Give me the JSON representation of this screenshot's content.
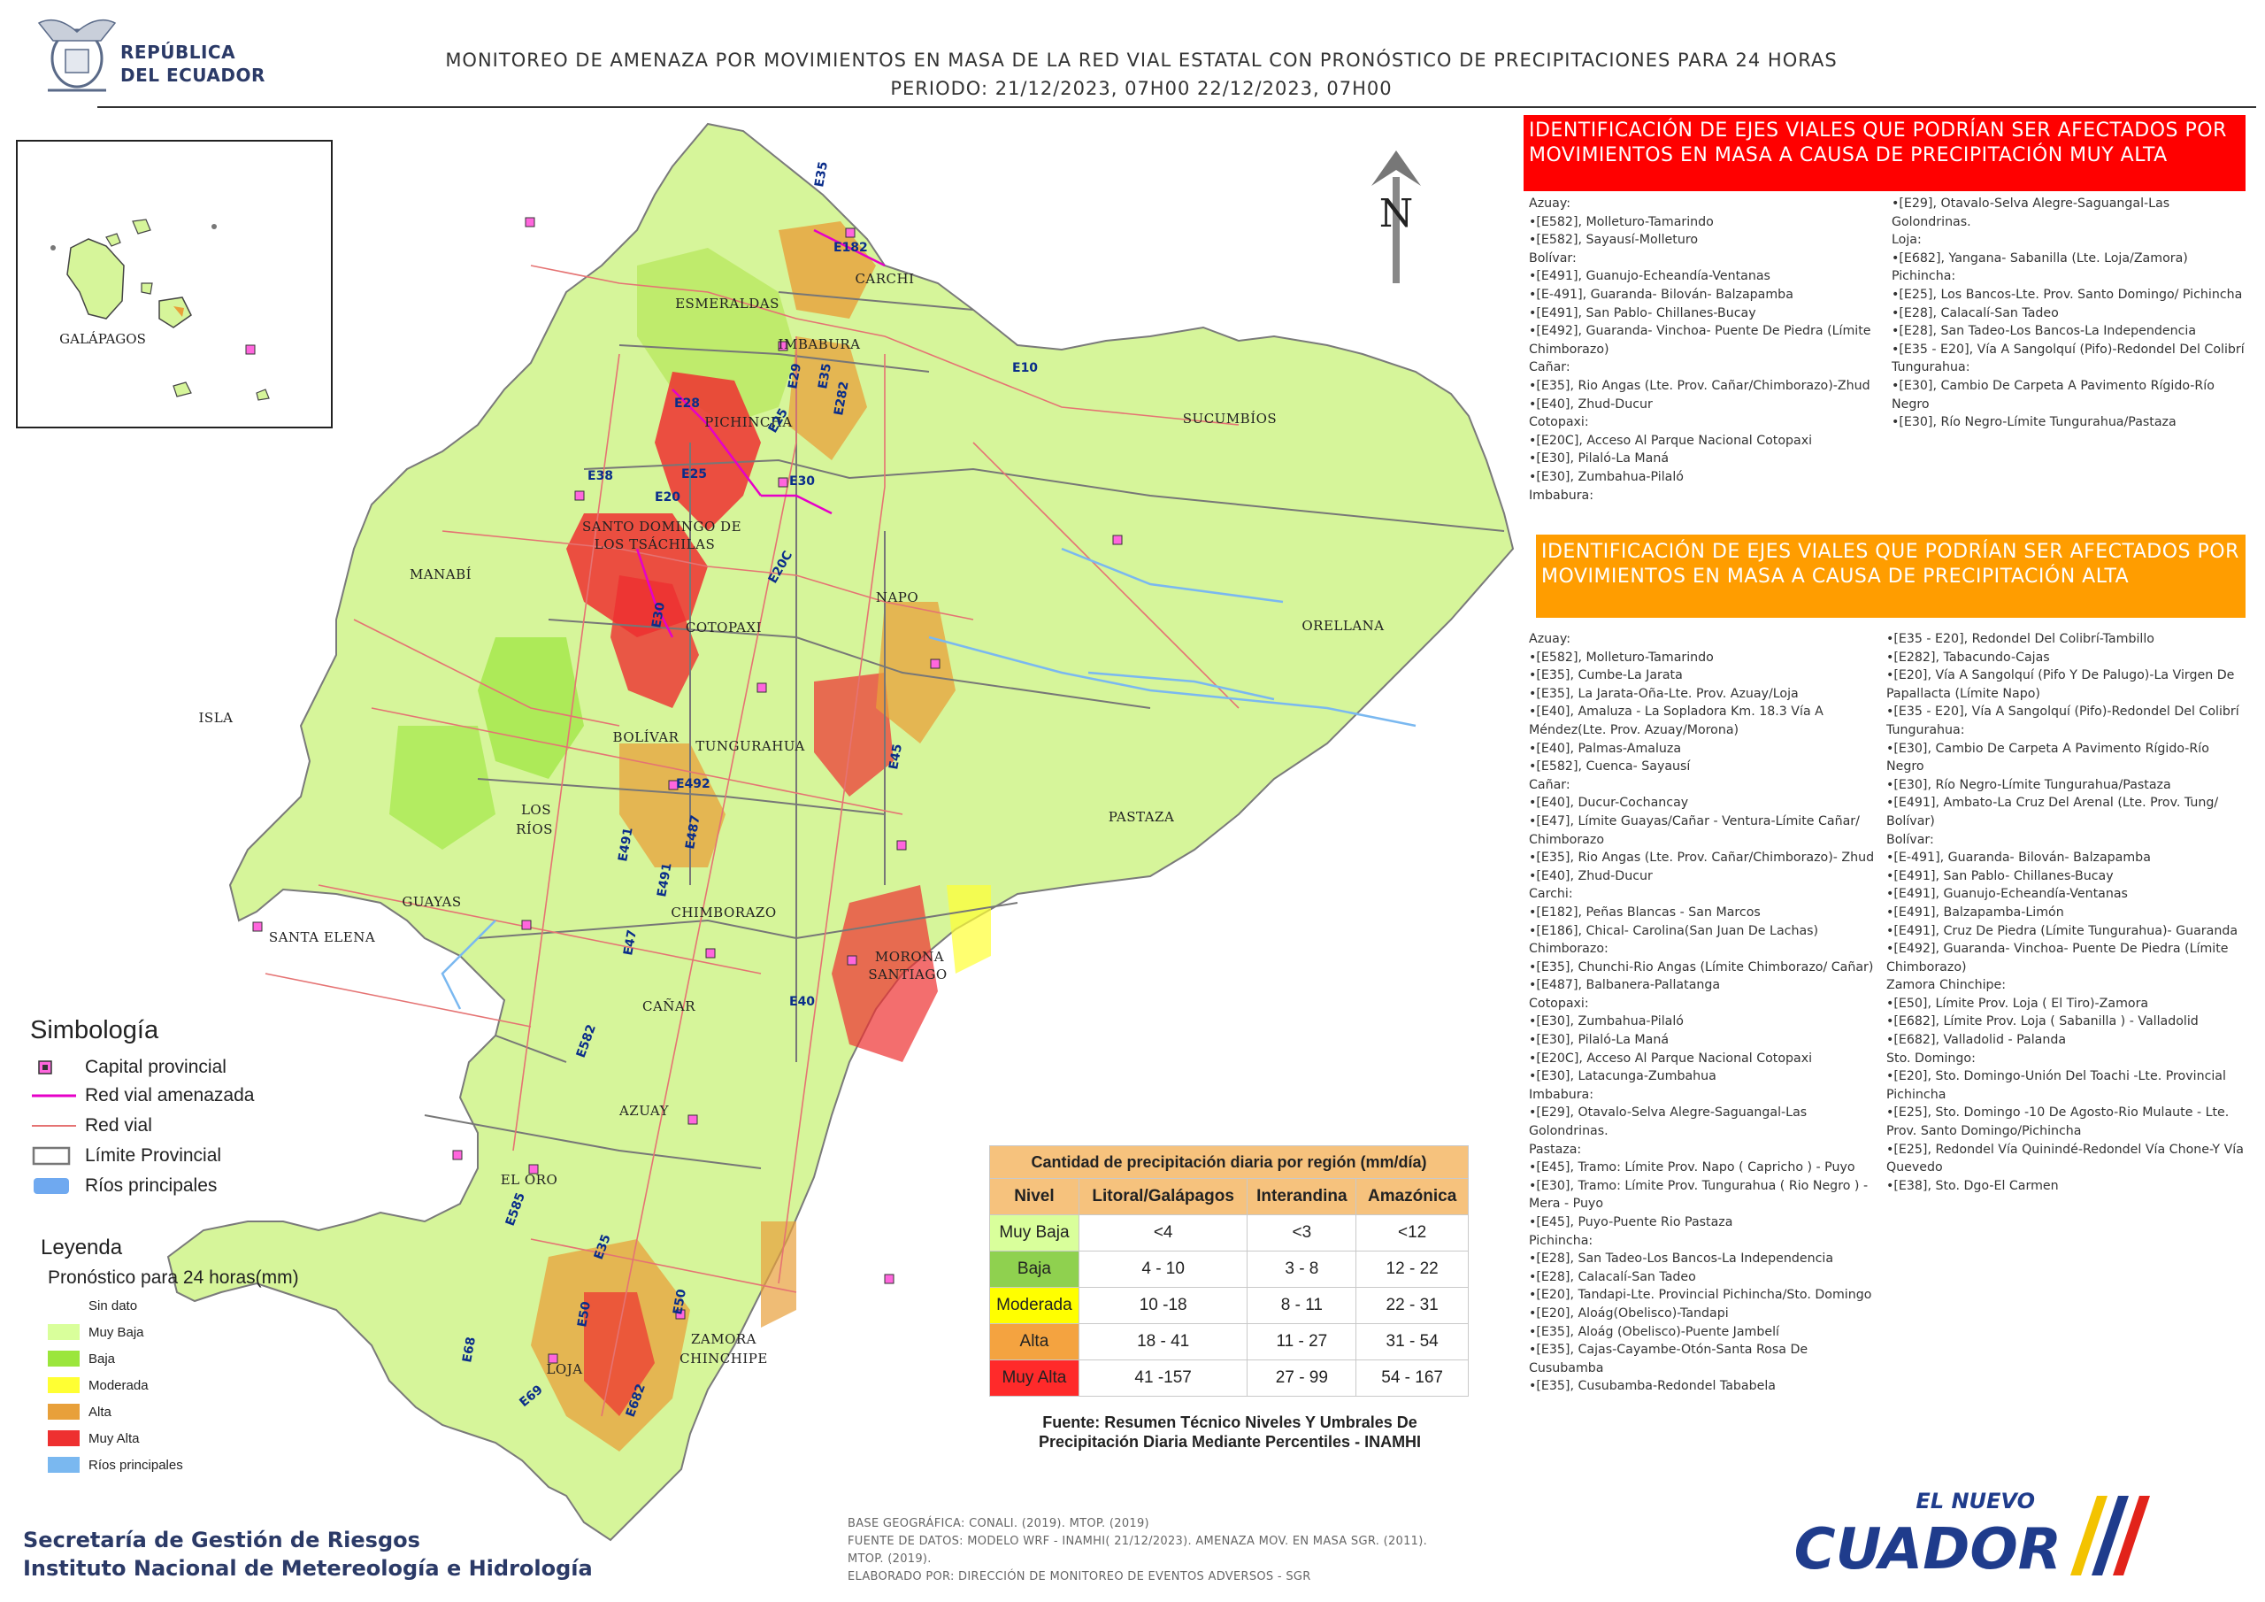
{
  "header": {
    "republic_line1": "REPÚBLICA",
    "republic_line2": "DEL ECUADOR",
    "title_line1": "MONITOREO DE AMENAZA POR MOVIMIENTOS EN MASA DE LA RED VIAL  ESTATAL  CON PRONÓSTICO  DE  PRECIPITACIONES PARA 24 HORAS",
    "title_line2": "PERIODO: 21/12/2023, 07H00 22/12/2023, 07H00"
  },
  "map": {
    "north_label": "N",
    "provinces": [
      "CARCHI",
      "ESMERALDAS",
      "IMBABURA",
      "PICHINCHA",
      "SUCUMBÍOS",
      "SANTO DOMINGO DE",
      "LOS TSÁCHILAS",
      "MANABÍ",
      "NAPO",
      "ORELLANA",
      "COTOPAXI",
      "BOLÍVAR",
      "TUNGURAHUA",
      "LOS",
      "RÍOS",
      "PASTAZA",
      "GUAYAS",
      "SANTA ELENA",
      "CHIMBORAZO",
      "MORONA",
      "SANTIAGO",
      "CAÑAR",
      "AZUAY",
      "EL ORO",
      "LOJA",
      "ZAMORA",
      "CHINCHIPE",
      "ISLA"
    ],
    "inset_label": "GALÁPAGOS",
    "road_codes": [
      "E35",
      "E182",
      "E10",
      "E28",
      "E29",
      "E35",
      "E282",
      "E38",
      "E20",
      "E25",
      "E20C",
      "E30",
      "E30",
      "E45",
      "E492",
      "E491",
      "E491",
      "E487",
      "E47",
      "E40",
      "E582",
      "E585",
      "E35",
      "E50",
      "E50",
      "E68",
      "E69",
      "E682",
      "E25"
    ]
  },
  "panel_red": {
    "title": "IDENTIFICACIÓN DE EJES VIALES QUE PODRÍAN SER AFECTADOS POR MOVIMIENTOS EN MASA A CAUSA DE PRECIPITACIÓN MUY ALTA",
    "col1": [
      "Azuay:",
      "•[E582], Molleturo-Tamarindo",
      "•[E582], Sayausí-Molleturo",
      "Bolívar:",
      "•[E491], Guanujo-Echeandía-Ventanas",
      "•[E-491], Guaranda- Bilován- Balzapamba",
      "•[E491], San Pablo- Chillanes-Bucay",
      "•[E492], Guaranda- Vinchoa- Puente De Piedra (Límite Chimborazo)",
      "Cañar:",
      "•[E35], Rio Angas (Lte. Prov. Cañar/Chimborazo)-Zhud",
      "•[E40], Zhud-Ducur",
      "Cotopaxi:",
      "•[E20C], Acceso Al Parque Nacional Cotopaxi",
      "•[E30], Pilaló-La Maná",
      "•[E30], Zumbahua-Pilaló",
      "Imbabura:"
    ],
    "col2": [
      "•[E29], Otavalo-Selva Alegre-Saguangal-Las Golondrinas.",
      "Loja:",
      "•[E682], Yangana- Sabanilla (Lte. Loja/Zamora)",
      "Pichincha:",
      "•[E25], Los Bancos-Lte. Prov. Santo Domingo/ Pichincha",
      "•[E28], Calacalí-San Tadeo",
      "•[E28], San Tadeo-Los Bancos-La Independencia",
      "•[E35 - E20], Vía A Sangolquí (Pifo)-Redondel Del Colibrí",
      "Tungurahua:",
      "•[E30], Cambio De Carpeta A Pavimento Rígido-Río Negro",
      "•[E30], Río Negro-Límite Tungurahua/Pastaza"
    ]
  },
  "panel_orange": {
    "title": "IDENTIFICACIÓN DE EJES VIALES QUE PODRÍAN SER AFECTADOS POR MOVIMIENTOS EN MASA A CAUSA DE PRECIPITACIÓN  ALTA",
    "col1": [
      "Azuay:",
      "•[E582], Molleturo-Tamarindo",
      "•[E35], Cumbe-La Jarata",
      "•[E35], La Jarata-Oña-Lte. Prov. Azuay/Loja",
      "•[E40], Amaluza - La Sopladora Km. 18.3 Vía A Méndez(Lte. Prov. Azuay/Morona)",
      "•[E40], Palmas-Amaluza",
      "•[E582], Cuenca- Sayausí",
      "Cañar:",
      "•[E40], Ducur-Cochancay",
      "•[E47], Límite Guayas/Cañar - Ventura-Límite Cañar/ Chimborazo",
      "•[E35], Rio Angas (Lte. Prov. Cañar/Chimborazo)- Zhud",
      "•[E40], Zhud-Ducur",
      "Carchi:",
      "•[E182], Peñas Blancas - San Marcos",
      "•[E186], Chical- Carolina(San Juan De Lachas)",
      "Chimborazo:",
      "•[E35], Chunchi-Rio Angas (Límite Chimborazo/ Cañar)",
      "•[E487], Balbanera-Pallatanga",
      "Cotopaxi:",
      "•[E30], Zumbahua-Pilaló",
      "•[E30], Pilaló-La Maná",
      "•[E20C], Acceso Al Parque Nacional Cotopaxi",
      "•[E30], Latacunga-Zumbahua",
      "Imbabura:",
      "•[E29], Otavalo-Selva Alegre-Saguangal-Las Golondrinas.",
      "Pastaza:",
      "•[E45], Tramo: Límite Prov. Napo ( Capricho ) - Puyo",
      "•[E30], Tramo: Límite Prov. Tungurahua ( Rio Negro ) - Mera - Puyo",
      "•[E45], Puyo-Puente Rio Pastaza",
      "Pichincha:",
      "•[E28], San Tadeo-Los Bancos-La Independencia",
      "•[E28], Calacalí-San Tadeo",
      "•[E20], Tandapi-Lte. Provincial Pichincha/Sto. Domingo",
      "•[E20], Aloág(Obelisco)-Tandapi",
      "•[E35], Aloág (Obelisco)-Puente Jambelí",
      "•[E35], Cajas-Cayambe-Otón-Santa Rosa De Cusubamba",
      "•[E35], Cusubamba-Redondel Tababela"
    ],
    "col2": [
      "•[E35 - E20], Redondel Del Colibrí-Tambillo",
      "•[E282], Tabacundo-Cajas",
      "•[E20], Vía A Sangolquí (Pifo Y De Palugo)-La Virgen De Papallacta (Límite Napo)",
      "•[E35 - E20], Vía A Sangolquí (Pifo)-Redondel Del Colibrí",
      "Tungurahua:",
      "•[E30], Cambio De Carpeta A Pavimento Rígido-Río Negro",
      "•[E30], Río Negro-Límite Tungurahua/Pastaza",
      "•[E491], Ambato-La Cruz Del Arenal (Lte. Prov. Tung/ Bolívar)",
      "Bolívar:",
      "•[E-491], Guaranda- Bilován- Balzapamba",
      "•[E491], San Pablo- Chillanes-Bucay",
      "•[E491], Guanujo-Echeandía-Ventanas",
      "•[E491], Balzapamba-Limón",
      "•[E491], Cruz De Piedra (Límite Tungurahua)- Guaranda",
      "•[E492], Guaranda- Vinchoa- Puente De Piedra (Límite Chimborazo)",
      "Zamora Chinchipe:",
      "•[E50], Límite Prov. Loja ( El Tiro)-Zamora",
      "•[E682], Límite Prov. Loja ( Sabanilla ) - Valladolid",
      "•[E682], Valladolid - Palanda",
      "Sto. Domingo:",
      "•[E20], Sto. Domingo-Unión Del Toachi -Lte. Provincial Pichincha",
      "•[E25], Sto. Domingo -10 De Agosto-Rio Mulaute - Lte. Prov. Santo Domingo/Pichincha",
      "•[E25], Redondel Vía Quinindé-Redondel Vía Chone-Y Vía Quevedo",
      "•[E38], Sto. Dgo-El Carmen"
    ]
  },
  "simbologia": {
    "title": "Simbología",
    "items": [
      "Capital provincial",
      "Red vial amenazada",
      "Red vial",
      "Límite Provincial",
      "Ríos principales"
    ]
  },
  "leyenda": {
    "title": "Leyenda",
    "subtitle": "Pronóstico para 24 horas(mm)",
    "items": [
      "Sin dato",
      "Muy Baja",
      "Baja",
      "Moderada",
      "Alta",
      "Muy Alta",
      "Ríos principales"
    ],
    "colors": [
      "#ffffff",
      "#d9ff9b",
      "#9be63c",
      "#ffff33",
      "#e8a03a",
      "#ee3030",
      "#7ab8f0"
    ]
  },
  "table": {
    "title": "Cantidad de precipitación diaria por región (mm/día)",
    "headers": [
      "Nivel",
      "Litoral/Galápagos",
      "Interandina",
      "Amazónica"
    ],
    "rows": [
      {
        "nivel": "Muy Baja",
        "litoral": "<4",
        "interandina": "<3",
        "amazonica": "<12",
        "color": "#d9ff9b"
      },
      {
        "nivel": "Baja",
        "litoral": "4 - 10",
        "interandina": "3 - 8",
        "amazonica": "12 - 22",
        "color": "#8fd14f"
      },
      {
        "nivel": "Moderada",
        "litoral": "10 -18",
        "interandina": "8 - 11",
        "amazonica": "22 - 31",
        "color": "#ffff00"
      },
      {
        "nivel": "Alta",
        "litoral": "18 - 41",
        "interandina": "11 - 27",
        "amazonica": "31 - 54",
        "color": "#f4a340"
      },
      {
        "nivel": "Muy Alta",
        "litoral": "41 -157",
        "interandina": "27 - 99",
        "amazonica": "54 - 167",
        "color": "#ff2a2a"
      }
    ],
    "fuente_line1": "Fuente: Resumen Técnico Niveles Y Umbrales De",
    "fuente_line2": "Precipitación Diaria Mediante Percentiles - INAMHI"
  },
  "footer": {
    "org1": "Secretaría de Gestión de Riesgos",
    "org2": "Instituto Nacional de Metereología e Hidrología",
    "base1": "BASE GEOGRÁFICA: CONALI. (2019). MTOP. (2019)",
    "base2": "FUENTE DE DATOS: MODELO WRF - INAMHI( 21/12/2023).  AMENAZA MOV. EN MASA SGR. (2011).",
    "base3": "MTOP. (2019).",
    "base4": "ELABORADO POR: DIRECCIÓN DE MONITOREO DE EVENTOS ADVERSOS - SGR",
    "logo_top": "EL NUEVO",
    "logo_main": "ECUADOR"
  }
}
